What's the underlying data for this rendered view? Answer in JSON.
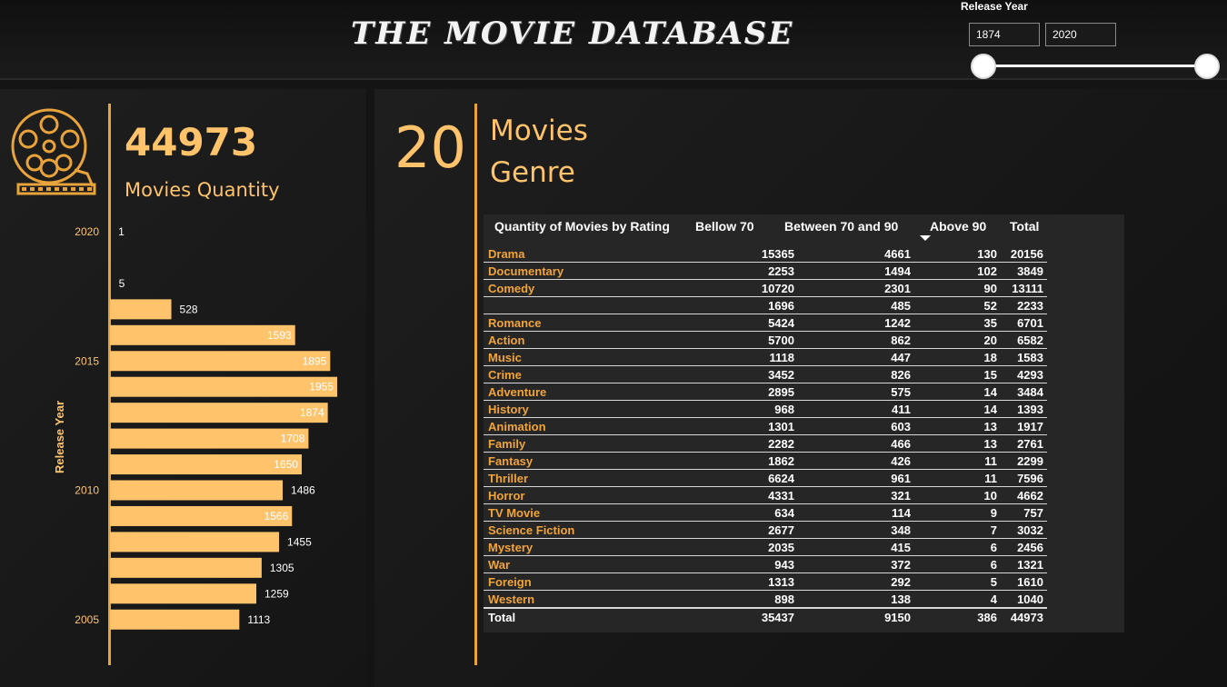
{
  "header": {
    "title": "THE MOVIE DATABASE",
    "slicer_label": "Release Year",
    "year_from": "1874",
    "year_to": "2020"
  },
  "kpi_movies": {
    "value": "44973",
    "label": "Movies Quantity"
  },
  "kpi_genre": {
    "value": "20",
    "label_line1": "Movies",
    "label_line2": "Genre"
  },
  "colors": {
    "accent": "#ffc46b",
    "line": "#e8a33a",
    "genre_text": "#f0a43a",
    "background": "#141414"
  },
  "chart_data": [
    {
      "type": "bar",
      "orientation": "horizontal",
      "ylabel": "Release Year",
      "y_tick_labels": [
        "2020",
        "2015",
        "2010",
        "2005"
      ],
      "categories": [
        2020,
        2019,
        2018,
        2017,
        2016,
        2015,
        2014,
        2013,
        2012,
        2011,
        2010,
        2009,
        2008,
        2007,
        2006,
        2005
      ],
      "values": [
        1,
        null,
        5,
        528,
        1593,
        1895,
        1955,
        1874,
        1708,
        1650,
        1486,
        1566,
        1455,
        1305,
        1259,
        1113
      ],
      "data_labels": true
    },
    {
      "type": "table",
      "title": "Quantity of Movies by Rating",
      "columns": [
        "Bellow 70",
        "Between 70 and 90",
        "Above 90",
        "Total"
      ],
      "sorted_column": "Above 90",
      "rows": [
        {
          "genre": "Drama",
          "values": [
            "15365",
            "4661",
            "130",
            "20156"
          ]
        },
        {
          "genre": "Documentary",
          "values": [
            "2253",
            "1494",
            "102",
            "3849"
          ]
        },
        {
          "genre": "Comedy",
          "values": [
            "10720",
            "2301",
            "90",
            "13111"
          ]
        },
        {
          "genre": "",
          "values": [
            "1696",
            "485",
            "52",
            "2233"
          ]
        },
        {
          "genre": "Romance",
          "values": [
            "5424",
            "1242",
            "35",
            "6701"
          ]
        },
        {
          "genre": "Action",
          "values": [
            "5700",
            "862",
            "20",
            "6582"
          ]
        },
        {
          "genre": "Music",
          "values": [
            "1118",
            "447",
            "18",
            "1583"
          ]
        },
        {
          "genre": "Crime",
          "values": [
            "3452",
            "826",
            "15",
            "4293"
          ]
        },
        {
          "genre": "Adventure",
          "values": [
            "2895",
            "575",
            "14",
            "3484"
          ]
        },
        {
          "genre": "History",
          "values": [
            "968",
            "411",
            "14",
            "1393"
          ]
        },
        {
          "genre": "Animation",
          "values": [
            "1301",
            "603",
            "13",
            "1917"
          ]
        },
        {
          "genre": "Family",
          "values": [
            "2282",
            "466",
            "13",
            "2761"
          ]
        },
        {
          "genre": "Fantasy",
          "values": [
            "1862",
            "426",
            "11",
            "2299"
          ]
        },
        {
          "genre": "Thriller",
          "values": [
            "6624",
            "961",
            "11",
            "7596"
          ]
        },
        {
          "genre": "Horror",
          "values": [
            "4331",
            "321",
            "10",
            "4662"
          ]
        },
        {
          "genre": "TV Movie",
          "values": [
            "634",
            "114",
            "9",
            "757"
          ]
        },
        {
          "genre": "Science Fiction",
          "values": [
            "2677",
            "348",
            "7",
            "3032"
          ]
        },
        {
          "genre": "Mystery",
          "values": [
            "2035",
            "415",
            "6",
            "2456"
          ]
        },
        {
          "genre": "War",
          "values": [
            "943",
            "372",
            "6",
            "1321"
          ]
        },
        {
          "genre": "Foreign",
          "values": [
            "1313",
            "292",
            "5",
            "1610"
          ]
        },
        {
          "genre": "Western",
          "values": [
            "898",
            "138",
            "4",
            "1040"
          ]
        }
      ],
      "total": {
        "label": "Total",
        "values": [
          "35437",
          "9150",
          "386",
          "44973"
        ]
      }
    }
  ]
}
